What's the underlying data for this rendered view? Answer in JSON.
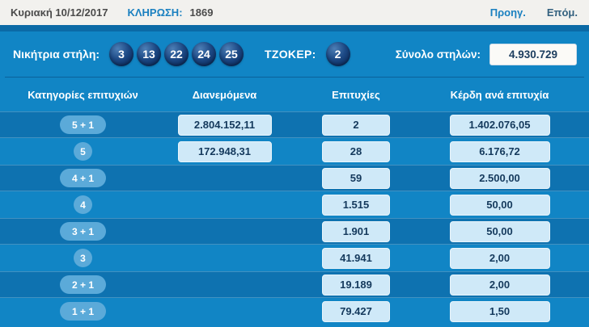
{
  "topbar": {
    "date": "Κυριακή 10/12/2017",
    "draw_label": "ΚΛΗΡΩΣΗ:",
    "draw_number": "1869",
    "prev_label": "Προηγ.",
    "next_label": "Επόμ."
  },
  "panel": {
    "winning_label": "Νικήτρια στήλη:",
    "winning_numbers": [
      "3",
      "13",
      "22",
      "24",
      "25"
    ],
    "joker_label": "ΤΖΟΚΕΡ:",
    "joker_number": "2",
    "total_label": "Σύνολο στηλών:",
    "total_value": "4.930.729"
  },
  "table": {
    "headers": [
      "Κατηγορίες επιτυχιών",
      "Διανεμόμενα",
      "Επιτυχίες",
      "Κέρδη ανά επιτυχία"
    ],
    "rows": [
      {
        "category": "5 + 1",
        "distributed": "2.804.152,11",
        "winners": "2",
        "prize": "1.402.076,05"
      },
      {
        "category": "5",
        "distributed": "172.948,31",
        "winners": "28",
        "prize": "6.176,72"
      },
      {
        "category": "4 + 1",
        "distributed": "",
        "winners": "59",
        "prize": "2.500,00"
      },
      {
        "category": "4",
        "distributed": "",
        "winners": "1.515",
        "prize": "50,00"
      },
      {
        "category": "3 + 1",
        "distributed": "",
        "winners": "1.901",
        "prize": "50,00"
      },
      {
        "category": "3",
        "distributed": "",
        "winners": "41.941",
        "prize": "2,00"
      },
      {
        "category": "2 + 1",
        "distributed": "",
        "winners": "19.189",
        "prize": "2,00"
      },
      {
        "category": "1 + 1",
        "distributed": "",
        "winners": "79.427",
        "prize": "1,50"
      }
    ]
  },
  "colors": {
    "panel_blue": "#1185c5",
    "dark_row_blue": "#0e72b0",
    "top_strip_blue": "#0b6aa6",
    "ball_navy": "#1d4a86",
    "badge_blue": "#5baad9",
    "value_box_bg": "#cfe9f8",
    "value_text": "#14395c",
    "topbar_bg": "#f2f1ee",
    "link_blue": "#1a80c0"
  }
}
